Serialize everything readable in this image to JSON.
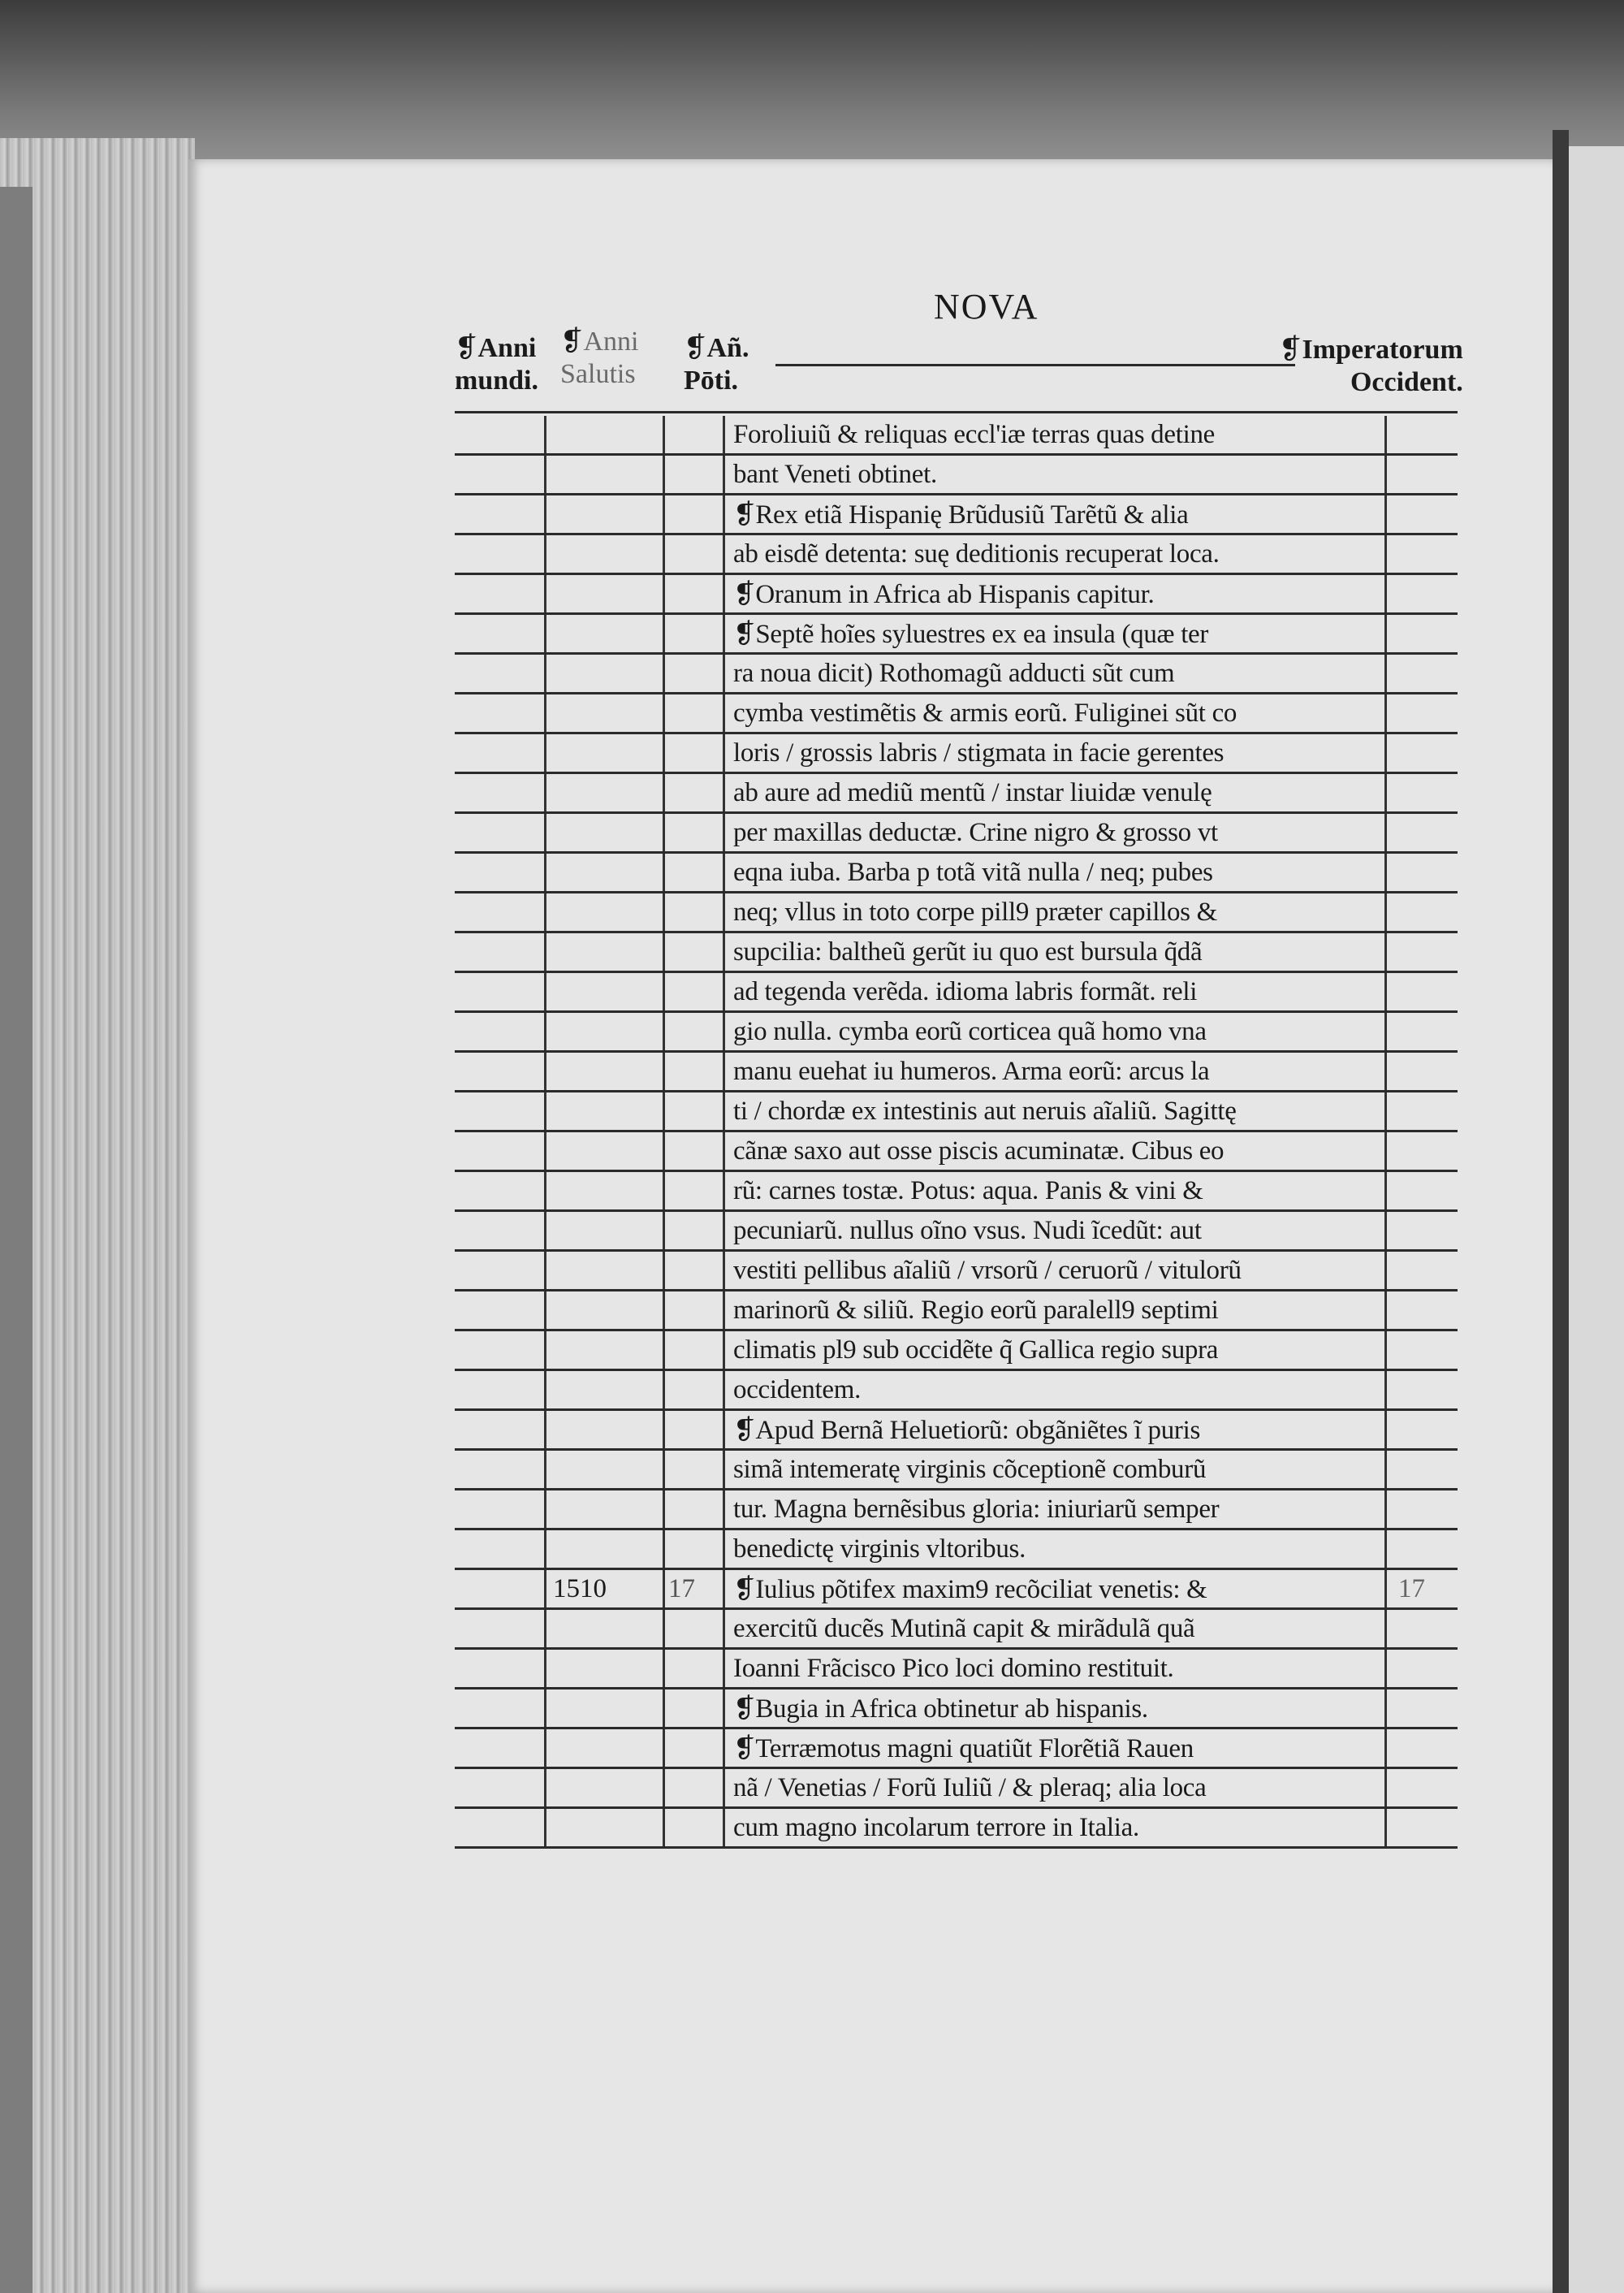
{
  "page": {
    "running_title": "NOVA",
    "headers": {
      "anni_mundi": {
        "line1": "Anni",
        "line2": "mundi."
      },
      "anni_salutis": {
        "line1": "Anni",
        "line2": "Salutis"
      },
      "anni_pontificis": {
        "line1": "Añ.",
        "line2": "Pōti."
      },
      "imperatorum": {
        "line1": "Imperatorum",
        "line2": "Occident."
      },
      "paragraph_mark": "❡"
    },
    "rows": [
      {
        "mundi": "",
        "salutis": "",
        "poti": "",
        "text": "Foroliuiũ & reliquas eccl'iæ terras quas detine",
        "imp": ""
      },
      {
        "mundi": "",
        "salutis": "",
        "poti": "",
        "text": "bant Veneti obtinet.",
        "imp": ""
      },
      {
        "mundi": "",
        "salutis": "",
        "poti": "",
        "text": "❡Rex etiã Hispanię Brũdusiũ Tarẽtũ & alia",
        "imp": ""
      },
      {
        "mundi": "",
        "salutis": "",
        "poti": "",
        "text": "ab eisdẽ detenta: suę deditionis recuperat loca.",
        "imp": ""
      },
      {
        "mundi": "",
        "salutis": "",
        "poti": "",
        "text": "❡Oranum in Africa ab Hispanis capitur.",
        "imp": ""
      },
      {
        "mundi": "",
        "salutis": "",
        "poti": "",
        "text": "❡Septẽ hoĩes syluestres ex ea insula (quæ ter",
        "imp": ""
      },
      {
        "mundi": "",
        "salutis": "",
        "poti": "",
        "text": "ra noua dicit) Rothomagũ adducti sũt cum",
        "imp": ""
      },
      {
        "mundi": "",
        "salutis": "",
        "poti": "",
        "text": "cymba vestimẽtis & armis eorũ. Fuliginei sũt co",
        "imp": ""
      },
      {
        "mundi": "",
        "salutis": "",
        "poti": "",
        "text": "loris / grossis labris / stigmata in facie gerentes",
        "imp": ""
      },
      {
        "mundi": "",
        "salutis": "",
        "poti": "",
        "text": "ab aure ad mediũ mentũ / instar liuidæ venulę",
        "imp": ""
      },
      {
        "mundi": "",
        "salutis": "",
        "poti": "",
        "text": "per maxillas deductæ. Crine nigro & grosso vt",
        "imp": ""
      },
      {
        "mundi": "",
        "salutis": "",
        "poti": "",
        "text": "eqna iuba. Barba p totã vitã nulla / neq; pubes",
        "imp": ""
      },
      {
        "mundi": "",
        "salutis": "",
        "poti": "",
        "text": "neq; vllus in toto corpe pill9 præter capillos &",
        "imp": ""
      },
      {
        "mundi": "",
        "salutis": "",
        "poti": "",
        "text": "supcilia: baltheũ gerũt iu quo est bursula q̃dã",
        "imp": ""
      },
      {
        "mundi": "",
        "salutis": "",
        "poti": "",
        "text": "ad tegenda verẽda. idioma labris formãt. reli",
        "imp": ""
      },
      {
        "mundi": "",
        "salutis": "",
        "poti": "",
        "text": "gio nulla. cymba eorũ corticea quã homo vna",
        "imp": ""
      },
      {
        "mundi": "",
        "salutis": "",
        "poti": "",
        "text": "manu euehat iu humeros. Arma eorũ: arcus la",
        "imp": ""
      },
      {
        "mundi": "",
        "salutis": "",
        "poti": "",
        "text": "ti / chordæ ex intestinis aut neruis aĩaliũ. Sagittę",
        "imp": ""
      },
      {
        "mundi": "",
        "salutis": "",
        "poti": "",
        "text": "cãnæ saxo aut osse piscis acuminatæ. Cibus eo",
        "imp": ""
      },
      {
        "mundi": "",
        "salutis": "",
        "poti": "",
        "text": "rũ: carnes tostæ. Potus: aqua. Panis & vini &",
        "imp": ""
      },
      {
        "mundi": "",
        "salutis": "",
        "poti": "",
        "text": "pecuniarũ. nullus oĩno vsus. Nudi ĩcedũt: aut",
        "imp": ""
      },
      {
        "mundi": "",
        "salutis": "",
        "poti": "",
        "text": "vestiti pellibus aĩaliũ / vrsorũ / ceruorũ / vitulorũ",
        "imp": ""
      },
      {
        "mundi": "",
        "salutis": "",
        "poti": "",
        "text": "marinorũ & siliũ. Regio eorũ paralell9 septimi",
        "imp": ""
      },
      {
        "mundi": "",
        "salutis": "",
        "poti": "",
        "text": "climatis pl9 sub occidẽte q̃ Gallica regio supra",
        "imp": ""
      },
      {
        "mundi": "",
        "salutis": "",
        "poti": "",
        "text": "occidentem.",
        "imp": ""
      },
      {
        "mundi": "",
        "salutis": "",
        "poti": "",
        "text": "❡Apud Bernã Heluetiorũ: obgãniẽtes ĩ puris",
        "imp": ""
      },
      {
        "mundi": "",
        "salutis": "",
        "poti": "",
        "text": "simã intemeratę virginis cõceptionẽ comburũ",
        "imp": ""
      },
      {
        "mundi": "",
        "salutis": "",
        "poti": "",
        "text": "tur. Magna bernẽsibus gloria: iniuriarũ semper",
        "imp": ""
      },
      {
        "mundi": "",
        "salutis": "",
        "poti": "",
        "text": "benedictę virginis vltoribus.",
        "imp": ""
      },
      {
        "mundi": "",
        "salutis": "1510",
        "poti": "17",
        "text": "❡Iulius põtifex maxim9 recõciliat venetis: &",
        "imp": "17"
      },
      {
        "mundi": "",
        "salutis": "",
        "poti": "",
        "text": "exercitũ ducẽs Mutinã capit & mirãdulã quã",
        "imp": ""
      },
      {
        "mundi": "",
        "salutis": "",
        "poti": "",
        "text": "Ioanni Frãcisco Pico loci domino restituit.",
        "imp": ""
      },
      {
        "mundi": "",
        "salutis": "",
        "poti": "",
        "text": "❡Bugia in Africa obtinetur ab hispanis.",
        "imp": ""
      },
      {
        "mundi": "",
        "salutis": "",
        "poti": "",
        "text": "❡Terræmotus magni quatiũt Florẽtiã Rauen",
        "imp": ""
      },
      {
        "mundi": "",
        "salutis": "",
        "poti": "",
        "text": "nã / Venetias / Forũ Iuliũ / & pleraq; alia loca",
        "imp": ""
      },
      {
        "mundi": "",
        "salutis": "",
        "poti": "",
        "text": "cum magno incolarum terrore in Italia.",
        "imp": ""
      }
    ]
  }
}
